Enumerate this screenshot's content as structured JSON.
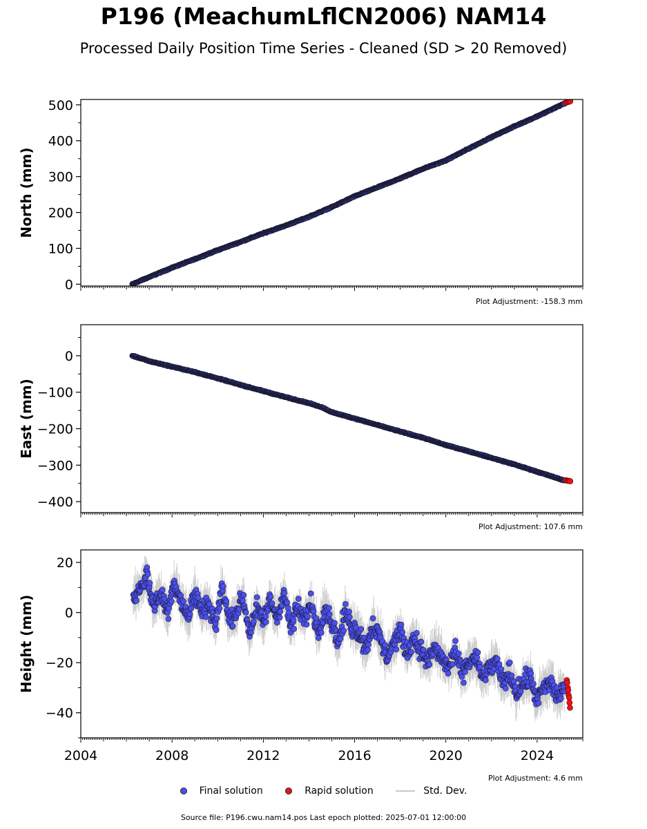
{
  "title": "P196 (MeachumLflCN2006) NAM14",
  "subtitle": "Processed Daily Position Time Series - Cleaned (SD > 20 Removed)",
  "colors": {
    "final": "#4b4ff0",
    "rapid": "#e8141b",
    "stddev": "#c8c8c8",
    "marker_edge": "#1a1a2e"
  },
  "legend": {
    "final": "Final solution",
    "rapid": "Rapid solution",
    "stddev": "Std. Dev."
  },
  "footer": "Source file: P196.cwu.nam14.pos  Last epoch plotted: 2025-07-01 12:00:00",
  "chart_data": [
    {
      "type": "scatter",
      "ylabel": "North (mm)",
      "adjustment": "Plot Adjustment: -158.3 mm",
      "xlim": [
        2004.0,
        2026.0
      ],
      "ylim": [
        -5,
        515
      ],
      "yticks": [
        0,
        100,
        200,
        300,
        400,
        500
      ],
      "ytick_labels": [
        "0",
        "100",
        "200",
        "300",
        "400",
        "500"
      ],
      "final_solution": {
        "x": [
          2006.25,
          2007.0,
          2008.0,
          2009.0,
          2010.0,
          2011.0,
          2012.0,
          2013.0,
          2014.0,
          2015.0,
          2016.0,
          2017.0,
          2018.0,
          2019.0,
          2020.0,
          2021.0,
          2022.0,
          2023.0,
          2024.0,
          2025.2
        ],
        "y": [
          0,
          20,
          46,
          70,
          95,
          118,
          142,
          164,
          188,
          215,
          245,
          270,
          295,
          322,
          345,
          378,
          410,
          440,
          468,
          504
        ]
      },
      "rapid_solution": {
        "x": [
          2025.25,
          2025.3,
          2025.35,
          2025.4,
          2025.45
        ],
        "y": [
          506,
          507,
          508,
          509,
          510
        ]
      }
    },
    {
      "type": "scatter",
      "ylabel": "East (mm)",
      "adjustment": "Plot Adjustment: 107.6 mm",
      "xlim": [
        2004.0,
        2026.0
      ],
      "ylim": [
        -430,
        85
      ],
      "yticks": [
        0,
        -100,
        -200,
        -300,
        -400
      ],
      "ytick_labels": [
        "0",
        "−100",
        "−200",
        "−300",
        "−400"
      ],
      "final_solution": {
        "x": [
          2006.25,
          2007.0,
          2008.0,
          2009.0,
          2010.0,
          2011.0,
          2012.0,
          2013.0,
          2014.0,
          2014.6,
          2015.0,
          2016.0,
          2017.0,
          2018.0,
          2019.0,
          2020.0,
          2021.0,
          2022.0,
          2023.0,
          2024.0,
          2025.2
        ],
        "y": [
          0,
          -15,
          -30,
          -45,
          -62,
          -80,
          -97,
          -114,
          -130,
          -142,
          -155,
          -172,
          -190,
          -208,
          -225,
          -245,
          -262,
          -280,
          -298,
          -318,
          -342
        ]
      },
      "rapid_solution": {
        "x": [
          2025.25,
          2025.3,
          2025.35,
          2025.4,
          2025.45
        ],
        "y": [
          -341,
          -342,
          -343,
          -343,
          -344
        ]
      }
    },
    {
      "type": "scatter",
      "ylabel": "Height (mm)",
      "adjustment": "Plot Adjustment: 4.6 mm",
      "xlim": [
        2004.0,
        2026.0
      ],
      "ylim": [
        -50,
        25
      ],
      "yticks": [
        20,
        0,
        -20,
        -40
      ],
      "ytick_labels": [
        "20",
        "0",
        "−20",
        "−40"
      ],
      "xticks": [
        2004,
        2008,
        2012,
        2016,
        2020,
        2024
      ],
      "xtick_labels": [
        "2004",
        "2008",
        "2012",
        "2016",
        "2020",
        "2024"
      ],
      "final_solution": {
        "x": [
          2006.3,
          2006.6,
          2006.9,
          2007.2,
          2007.5,
          2007.8,
          2008.1,
          2008.4,
          2008.7,
          2009.0,
          2009.3,
          2009.6,
          2009.9,
          2010.2,
          2010.5,
          2010.8,
          2011.1,
          2011.4,
          2011.7,
          2012.0,
          2012.3,
          2012.6,
          2012.9,
          2013.2,
          2013.5,
          2013.8,
          2014.1,
          2014.4,
          2014.7,
          2015.0,
          2015.3,
          2015.6,
          2015.9,
          2016.2,
          2016.5,
          2016.8,
          2017.1,
          2017.4,
          2017.7,
          2018.0,
          2018.3,
          2018.6,
          2018.9,
          2019.2,
          2019.5,
          2019.8,
          2020.1,
          2020.4,
          2020.7,
          2021.0,
          2021.3,
          2021.6,
          2021.9,
          2022.2,
          2022.5,
          2022.8,
          2023.1,
          2023.4,
          2023.7,
          2024.0,
          2024.3,
          2024.6,
          2024.9,
          2025.2
        ],
        "y": [
          5,
          10,
          15,
          2,
          8,
          0,
          12,
          5,
          -2,
          8,
          0,
          4,
          -5,
          10,
          -3,
          0,
          6,
          -8,
          2,
          -4,
          5,
          -2,
          8,
          -6,
          2,
          -3,
          4,
          -8,
          2,
          -4,
          -12,
          0,
          -6,
          -8,
          -14,
          -5,
          -10,
          -18,
          -12,
          -8,
          -16,
          -10,
          -15,
          -20,
          -14,
          -18,
          -22,
          -16,
          -24,
          -20,
          -18,
          -26,
          -22,
          -20,
          -28,
          -24,
          -32,
          -28,
          -26,
          -35,
          -30,
          -28,
          -34,
          -30
        ]
      },
      "rapid_solution": {
        "x": [
          2025.3,
          2025.32,
          2025.34,
          2025.36,
          2025.38,
          2025.4,
          2025.42,
          2025.44
        ],
        "y": [
          -27,
          -28,
          -30,
          -31,
          -33,
          -34,
          -36,
          -38
        ]
      }
    }
  ]
}
